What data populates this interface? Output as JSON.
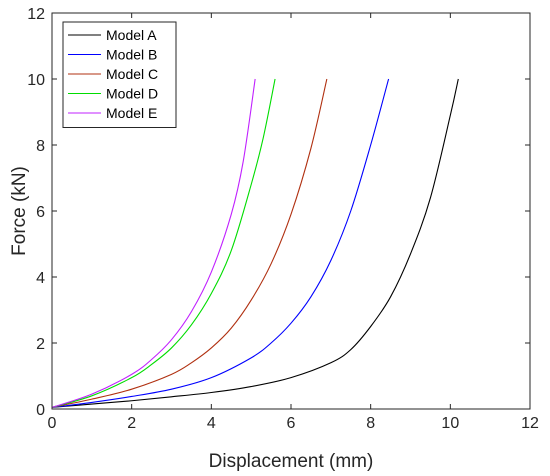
{
  "chart_data": {
    "type": "line",
    "title": "",
    "xlabel": "Displacement (mm)",
    "ylabel": "Force (kN)",
    "xlim": [
      0,
      12
    ],
    "ylim": [
      0,
      12
    ],
    "xticks": [
      0,
      2,
      4,
      6,
      8,
      10,
      12
    ],
    "yticks": [
      0,
      2,
      4,
      6,
      8,
      10,
      12
    ],
    "grid": false,
    "legend_position": "top-left",
    "series": [
      {
        "name": "Model A",
        "color": "#000000",
        "x": [
          0,
          1,
          2,
          3,
          4,
          5,
          6,
          7,
          7.5,
          8,
          8.5,
          9,
          9.5,
          10,
          10.2
        ],
        "y": [
          0.05,
          0.15,
          0.25,
          0.37,
          0.5,
          0.68,
          0.95,
          1.4,
          1.8,
          2.5,
          3.4,
          4.7,
          6.4,
          8.9,
          10
        ]
      },
      {
        "name": "Model B",
        "color": "#0000ff",
        "x": [
          0,
          1,
          2,
          3,
          4,
          5,
          5.5,
          6,
          6.5,
          7,
          7.5,
          8,
          8.45
        ],
        "y": [
          0.05,
          0.2,
          0.38,
          0.6,
          0.95,
          1.55,
          2.0,
          2.6,
          3.4,
          4.5,
          6.0,
          8.0,
          10
        ]
      },
      {
        "name": "Model C",
        "color": "#b03010",
        "x": [
          0,
          1,
          2,
          3,
          3.5,
          4,
          4.5,
          5,
          5.5,
          6,
          6.5,
          6.9
        ],
        "y": [
          0.05,
          0.3,
          0.6,
          1.05,
          1.4,
          1.85,
          2.45,
          3.3,
          4.4,
          5.9,
          7.9,
          10
        ]
      },
      {
        "name": "Model D",
        "color": "#00dd00",
        "x": [
          0,
          1,
          2,
          2.5,
          3,
          3.5,
          4,
          4.5,
          5,
          5.3,
          5.6
        ],
        "y": [
          0.05,
          0.4,
          0.95,
          1.35,
          1.85,
          2.55,
          3.5,
          4.8,
          6.8,
          8.2,
          10
        ]
      },
      {
        "name": "Model E",
        "color": "#c020ff",
        "x": [
          0,
          1,
          2,
          2.5,
          3,
          3.5,
          4,
          4.5,
          4.8,
          5.1
        ],
        "y": [
          0.05,
          0.45,
          1.05,
          1.5,
          2.1,
          2.95,
          4.15,
          5.9,
          7.5,
          10
        ]
      }
    ]
  }
}
